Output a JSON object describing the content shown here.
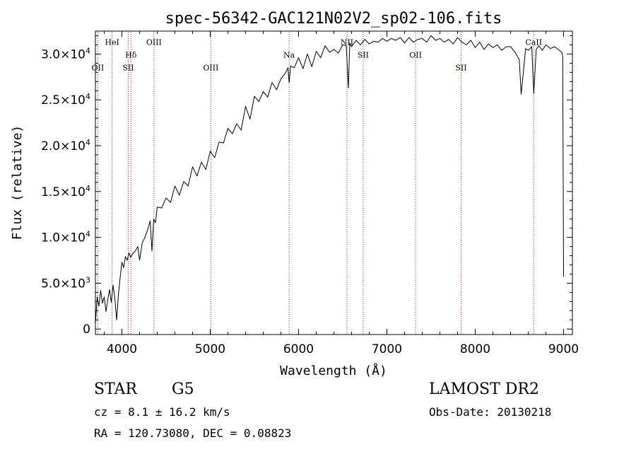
{
  "colors": {
    "spectrum": "#000000",
    "line_marker": "#b22222",
    "axes": "#000000"
  },
  "info": {
    "class_label": "STAR",
    "subclass": "G5",
    "survey": "LAMOST DR2",
    "redshift": "cz = 8.1 ± 16.2 km/s",
    "obs_date": "Obs-Date: 20130218",
    "coords": "RA = 120.73080, DEC =    0.08823"
  },
  "chart_data": {
    "type": "line",
    "title": "spec-56342-GAC121N02V2_sp02-106.fits",
    "xlabel": "Wavelength (Å)",
    "ylabel": "Flux (relative)",
    "xlim": [
      3700,
      9100
    ],
    "ylim": [
      -600,
      32500
    ],
    "grid": false,
    "x_ticks": [
      {
        "value": 4000,
        "label": "4000"
      },
      {
        "value": 5000,
        "label": "5000"
      },
      {
        "value": 6000,
        "label": "6000"
      },
      {
        "value": 7000,
        "label": "7000"
      },
      {
        "value": 8000,
        "label": "8000"
      },
      {
        "value": 9000,
        "label": "9000"
      }
    ],
    "y_ticks": [
      {
        "value": 0,
        "label": "0"
      },
      {
        "value": 5000,
        "base": "5.0×10",
        "exp": "3"
      },
      {
        "value": 10000,
        "base": "1.0×10",
        "exp": "4"
      },
      {
        "value": 15000,
        "base": "1.5×10",
        "exp": "4"
      },
      {
        "value": 20000,
        "base": "2.0×10",
        "exp": "4"
      },
      {
        "value": 25000,
        "base": "2.5×10",
        "exp": "4"
      },
      {
        "value": 30000,
        "base": "3.0×10",
        "exp": "4"
      }
    ],
    "spectral_lines": [
      {
        "label": "OII",
        "wavelength": 3727,
        "label_flux": 28200
      },
      {
        "label": "HeI",
        "wavelength": 3889,
        "label_flux": 31000
      },
      {
        "label": "SII",
        "wavelength": 4072,
        "label_flux": 28200
      },
      {
        "label": "Hδ",
        "wavelength": 4102,
        "label_flux": 29600
      },
      {
        "label": "OIII",
        "wavelength": 4363,
        "label_flux": 31000
      },
      {
        "label": "OIII",
        "wavelength": 5007,
        "label_flux": 28200
      },
      {
        "label": "Na",
        "wavelength": 5893,
        "label_flux": 29600
      },
      {
        "label": "NII",
        "wavelength": 6548,
        "label_flux": 31000
      },
      {
        "label": "SII",
        "wavelength": 6731,
        "label_flux": 29600
      },
      {
        "label": "OII",
        "wavelength": 7325,
        "label_flux": 29600
      },
      {
        "label": "SII",
        "wavelength": 7840,
        "label_flux": 28200
      },
      {
        "label": "CaII",
        "wavelength": 8662,
        "label_flux": 31000
      }
    ],
    "series": [
      {
        "x": [
          3700,
          3720,
          3740,
          3760,
          3780,
          3800,
          3820,
          3840,
          3860,
          3880,
          3900,
          3920,
          3940,
          3960,
          3980,
          4000,
          4020,
          4040,
          4060,
          4080,
          4100,
          4120,
          4150,
          4180,
          4200,
          4230,
          4260,
          4290,
          4320,
          4340,
          4360,
          4380,
          4400,
          4450,
          4500,
          4550,
          4600,
          4650,
          4700,
          4750,
          4800,
          4850,
          4900,
          4950,
          5000,
          5050,
          5100,
          5150,
          5200,
          5250,
          5300,
          5350,
          5400,
          5450,
          5500,
          5550,
          5600,
          5650,
          5700,
          5750,
          5800,
          5850,
          5880,
          5893,
          5910,
          5950,
          6000,
          6050,
          6100,
          6150,
          6200,
          6250,
          6300,
          6350,
          6400,
          6450,
          6500,
          6540,
          6563,
          6580,
          6600,
          6650,
          6700,
          6750,
          6800,
          6850,
          6900,
          6950,
          7000,
          7050,
          7100,
          7150,
          7200,
          7250,
          7300,
          7350,
          7400,
          7450,
          7500,
          7550,
          7600,
          7650,
          7700,
          7750,
          7800,
          7850,
          7900,
          7950,
          8000,
          8050,
          8100,
          8150,
          8200,
          8250,
          8300,
          8350,
          8400,
          8450,
          8498,
          8520,
          8542,
          8570,
          8600,
          8640,
          8662,
          8690,
          8720,
          8760,
          8800,
          8850,
          8900,
          8950,
          8980,
          8990,
          9000
        ],
        "y": [
          500,
          3500,
          2500,
          4200,
          2800,
          3500,
          1900,
          3200,
          4300,
          2900,
          4800,
          3400,
          1000,
          3700,
          5600,
          7300,
          6700,
          7900,
          7500,
          8300,
          7800,
          8200,
          8500,
          9000,
          7500,
          9400,
          10000,
          10800,
          11800,
          8500,
          12000,
          11600,
          13300,
          13200,
          14300,
          13800,
          15600,
          14600,
          16100,
          15600,
          17700,
          16700,
          18200,
          17400,
          19400,
          18700,
          20400,
          20300,
          21900,
          21300,
          22400,
          21700,
          24300,
          22900,
          25400,
          24800,
          25900,
          25300,
          26900,
          26100,
          27300,
          27900,
          28500,
          26900,
          28700,
          28500,
          29600,
          28400,
          30000,
          28600,
          30300,
          29600,
          30900,
          30200,
          30500,
          30100,
          31000,
          30900,
          26300,
          31200,
          30800,
          31500,
          31000,
          31600,
          31100,
          31400,
          31300,
          31700,
          31400,
          31700,
          31500,
          31800,
          31200,
          31800,
          31300,
          31600,
          31700,
          31300,
          32000,
          31500,
          31700,
          31300,
          31600,
          31100,
          31800,
          31300,
          31000,
          31500,
          30700,
          31300,
          30500,
          31100,
          30700,
          31000,
          30400,
          30800,
          30800,
          30200,
          29400,
          25600,
          27800,
          30600,
          30400,
          30800,
          25700,
          30500,
          30900,
          30400,
          31000,
          30600,
          30800,
          30400,
          30200,
          29700,
          5700
        ]
      }
    ]
  }
}
